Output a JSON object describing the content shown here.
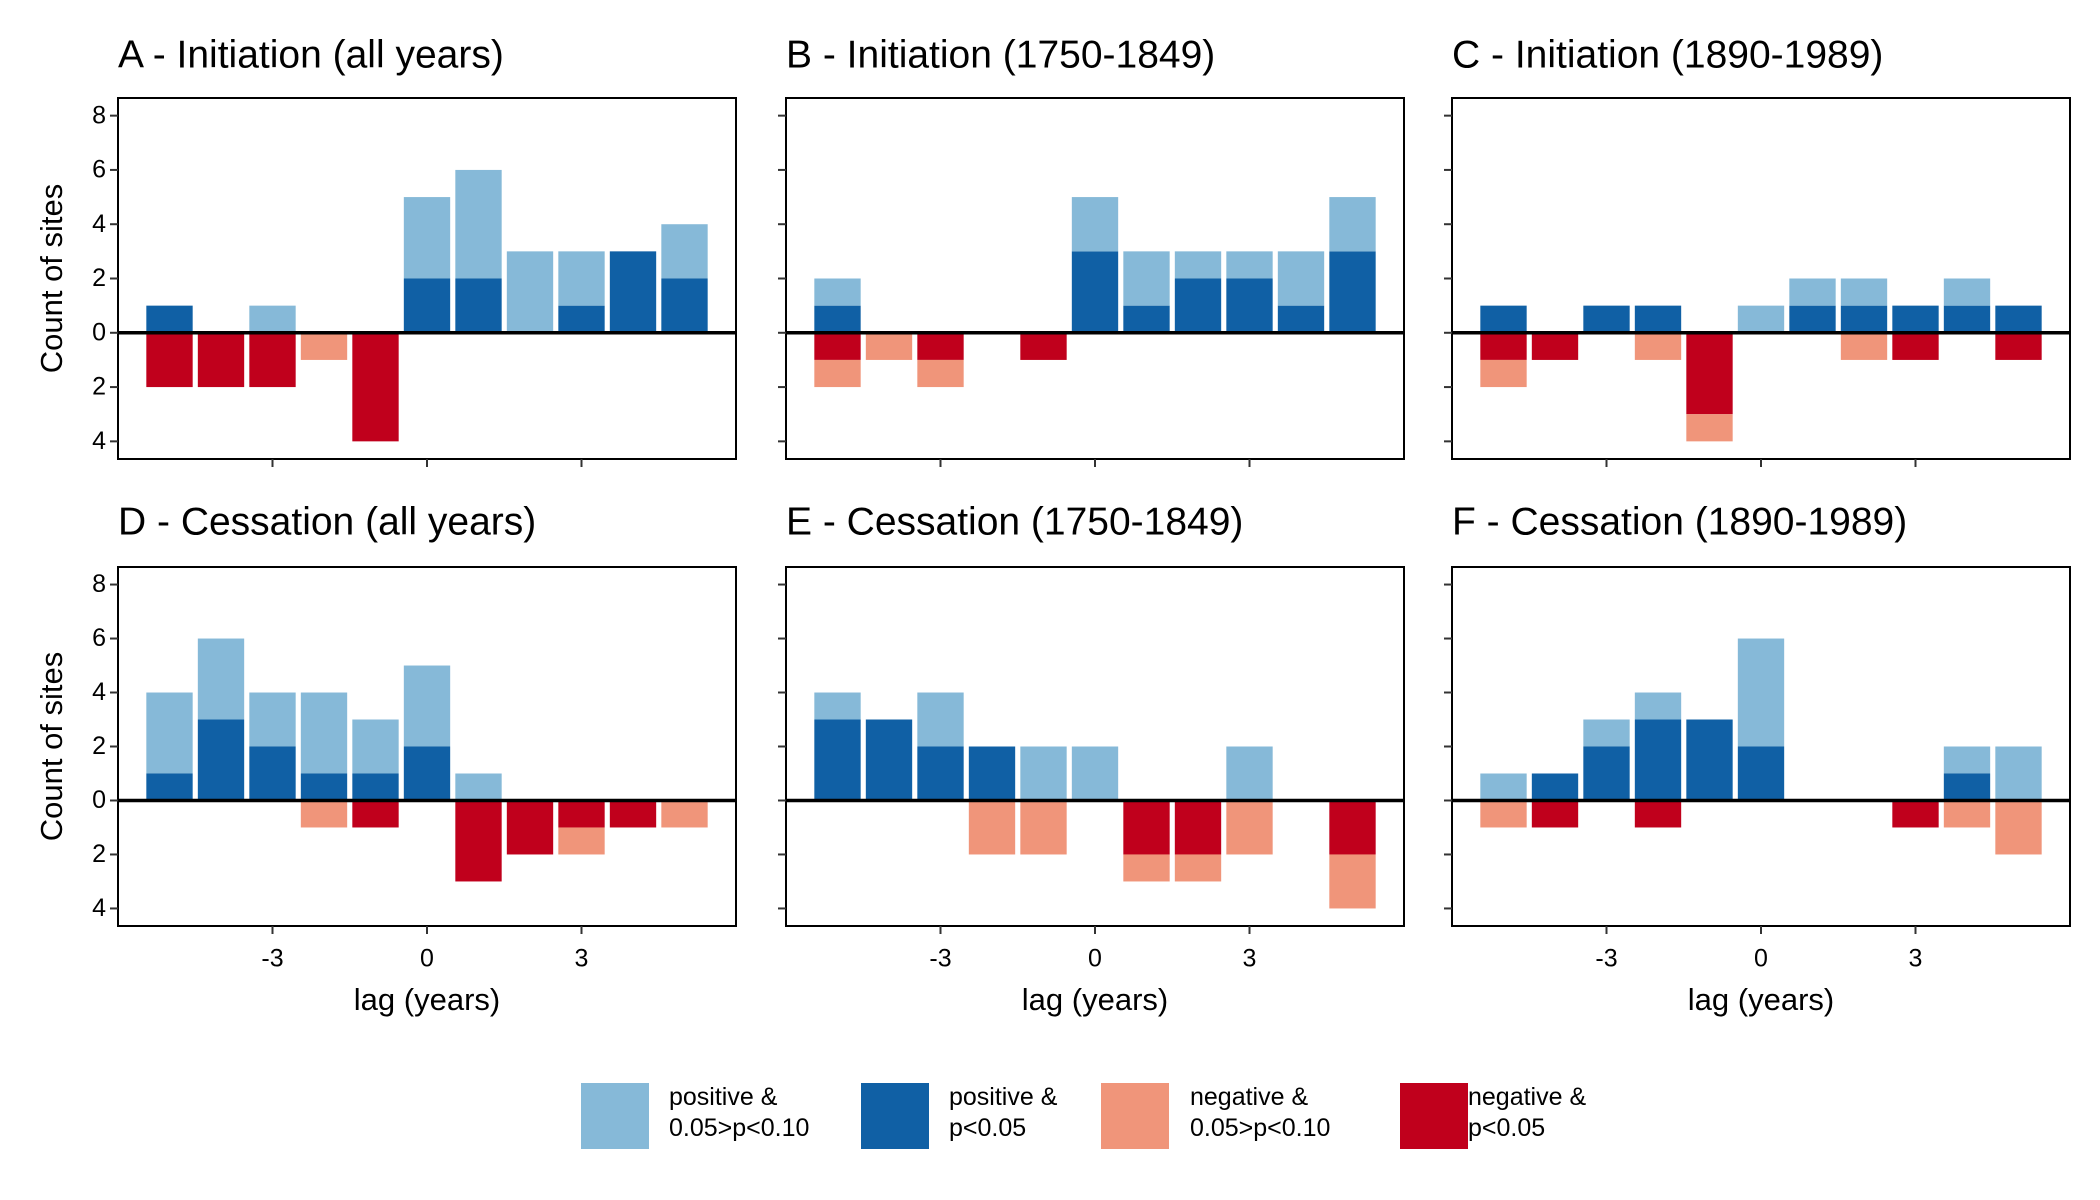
{
  "chart_data": [
    {
      "type": "bar",
      "title": "A - Initiation (all years)",
      "x": [
        -5,
        -4,
        -3,
        -2,
        -1,
        0,
        1,
        2,
        3,
        4,
        5
      ],
      "series": [
        {
          "name": "positive &\n0.05>p<0.10",
          "color": "#86b9d8",
          "values": [
            0,
            0,
            1,
            0,
            0,
            3,
            4,
            3,
            2,
            0,
            2
          ]
        },
        {
          "name": "positive &\np<0.05",
          "color": "#1060a5",
          "values": [
            1,
            0,
            0,
            0,
            0,
            2,
            2,
            0,
            1,
            3,
            2
          ]
        },
        {
          "name": "negative &\n0.05>p<0.10",
          "color": "#f0957a",
          "values": [
            0,
            0,
            0,
            -1,
            0,
            0,
            0,
            0,
            0,
            0,
            0
          ]
        },
        {
          "name": "negative &\np<0.05",
          "color": "#c0001c",
          "values": [
            -2,
            -2,
            -2,
            0,
            -4,
            0,
            0,
            0,
            0,
            0,
            0
          ]
        }
      ],
      "xlim": [
        -6,
        6
      ],
      "ylim": [
        -4.65,
        8.65
      ],
      "xticks": [
        -3,
        0,
        3
      ],
      "yticks": [
        {
          "value": -4,
          "label": "4"
        },
        {
          "value": -2,
          "label": "2"
        },
        0,
        2,
        4,
        6,
        8
      ],
      "ylabel": "Count of sites"
    },
    {
      "type": "bar",
      "title": "B - Initiation (1750-1849)",
      "x": [
        -5,
        -4,
        -3,
        -2,
        -1,
        0,
        1,
        2,
        3,
        4,
        5
      ],
      "series": [
        {
          "name": "positive &\n0.05>p<0.10",
          "color": "#86b9d8",
          "values": [
            1,
            0,
            0,
            0,
            0,
            2,
            2,
            1,
            1,
            2,
            2
          ]
        },
        {
          "name": "positive &\np<0.05",
          "color": "#1060a5",
          "values": [
            1,
            0,
            0,
            0,
            0,
            3,
            1,
            2,
            2,
            1,
            3
          ]
        },
        {
          "name": "negative &\n0.05>p<0.10",
          "color": "#f0957a",
          "values": [
            -1,
            -1,
            -1,
            0,
            0,
            0,
            0,
            0,
            0,
            0,
            0
          ]
        },
        {
          "name": "negative &\np<0.05",
          "color": "#c0001c",
          "values": [
            -1,
            0,
            -1,
            0,
            -1,
            0,
            0,
            0,
            0,
            0,
            0
          ]
        }
      ],
      "xlim": [
        -6,
        6
      ],
      "ylim": [
        -4.65,
        8.65
      ],
      "xticks": [
        -3,
        0,
        3
      ],
      "yticks": [
        -4,
        -2,
        0,
        2,
        4,
        6,
        8
      ]
    },
    {
      "type": "bar",
      "title": "C - Initiation (1890-1989)",
      "x": [
        -5,
        -4,
        -3,
        -2,
        -1,
        0,
        1,
        2,
        3,
        4,
        5
      ],
      "series": [
        {
          "name": "positive &\n0.05>p<0.10",
          "color": "#86b9d8",
          "values": [
            0,
            0,
            0,
            0,
            0,
            1,
            1,
            1,
            0,
            1,
            0
          ]
        },
        {
          "name": "positive &\np<0.05",
          "color": "#1060a5",
          "values": [
            1,
            0,
            1,
            1,
            0,
            0,
            1,
            1,
            1,
            1,
            1
          ]
        },
        {
          "name": "negative &\n0.05>p<0.10",
          "color": "#f0957a",
          "values": [
            -1,
            0,
            0,
            -1,
            -1,
            0,
            0,
            -1,
            0,
            0,
            0
          ]
        },
        {
          "name": "negative &\np<0.05",
          "color": "#c0001c",
          "values": [
            -1,
            -1,
            0,
            0,
            -3,
            0,
            0,
            0,
            -1,
            0,
            -1
          ]
        }
      ],
      "xlim": [
        -6,
        6
      ],
      "ylim": [
        -4.65,
        8.65
      ],
      "xticks": [
        -3,
        0,
        3
      ],
      "yticks": [
        -4,
        -2,
        0,
        2,
        4,
        6,
        8
      ]
    },
    {
      "type": "bar",
      "title": "D - Cessation (all years)",
      "x": [
        -5,
        -4,
        -3,
        -2,
        -1,
        0,
        1,
        2,
        3,
        4,
        5
      ],
      "series": [
        {
          "name": "positive &\n0.05>p<0.10",
          "color": "#86b9d8",
          "values": [
            3,
            3,
            2,
            3,
            2,
            3,
            1,
            0,
            0,
            0,
            0
          ]
        },
        {
          "name": "positive &\np<0.05",
          "color": "#1060a5",
          "values": [
            1,
            3,
            2,
            1,
            1,
            2,
            0,
            0,
            0,
            0,
            0
          ]
        },
        {
          "name": "negative &\n0.05>p<0.10",
          "color": "#f0957a",
          "values": [
            0,
            0,
            0,
            -1,
            0,
            0,
            0,
            0,
            -1,
            0,
            -1
          ]
        },
        {
          "name": "negative &\np<0.05",
          "color": "#c0001c",
          "values": [
            0,
            0,
            0,
            0,
            -1,
            0,
            -3,
            -2,
            -1,
            -1,
            0
          ]
        }
      ],
      "xlim": [
        -6,
        6
      ],
      "ylim": [
        -4.65,
        8.65
      ],
      "xticks": [
        -3,
        0,
        3
      ],
      "yticks": [
        {
          "value": -4,
          "label": "4"
        },
        {
          "value": -2,
          "label": "2"
        },
        0,
        2,
        4,
        6,
        8
      ],
      "xlabel": "lag (years)",
      "ylabel": "Count of sites"
    },
    {
      "type": "bar",
      "title": "E - Cessation (1750-1849)",
      "x": [
        -5,
        -4,
        -3,
        -2,
        -1,
        0,
        1,
        2,
        3,
        4,
        5
      ],
      "series": [
        {
          "name": "positive &\n0.05>p<0.10",
          "color": "#86b9d8",
          "values": [
            1,
            0,
            2,
            0,
            2,
            2,
            0,
            0,
            2,
            0,
            0
          ]
        },
        {
          "name": "positive &\np<0.05",
          "color": "#1060a5",
          "values": [
            3,
            3,
            2,
            2,
            0,
            0,
            0,
            0,
            0,
            0,
            0
          ]
        },
        {
          "name": "negative &\n0.05>p<0.10",
          "color": "#f0957a",
          "values": [
            0,
            0,
            0,
            -2,
            -2,
            0,
            -1,
            -1,
            -2,
            0,
            -2
          ]
        },
        {
          "name": "negative &\np<0.05",
          "color": "#c0001c",
          "values": [
            0,
            0,
            0,
            0,
            0,
            0,
            -2,
            -2,
            0,
            0,
            -2
          ]
        }
      ],
      "xlim": [
        -6,
        6
      ],
      "ylim": [
        -4.65,
        8.65
      ],
      "xticks": [
        -3,
        0,
        3
      ],
      "yticks": [
        -4,
        -2,
        0,
        2,
        4,
        6,
        8
      ],
      "xlabel": "lag (years)"
    },
    {
      "type": "bar",
      "title": "F - Cessation (1890-1989)",
      "x": [
        -5,
        -4,
        -3,
        -2,
        -1,
        0,
        1,
        2,
        3,
        4,
        5
      ],
      "series": [
        {
          "name": "positive &\n0.05>p<0.10",
          "color": "#86b9d8",
          "values": [
            1,
            0,
            1,
            1,
            0,
            4,
            0,
            0,
            0,
            1,
            2
          ]
        },
        {
          "name": "positive &\np<0.05",
          "color": "#1060a5",
          "values": [
            0,
            1,
            2,
            3,
            3,
            2,
            0,
            0,
            0,
            1,
            0
          ]
        },
        {
          "name": "negative &\n0.05>p<0.10",
          "color": "#f0957a",
          "values": [
            -1,
            0,
            0,
            0,
            0,
            0,
            0,
            0,
            0,
            -1,
            -2
          ]
        },
        {
          "name": "negative &\np<0.05",
          "color": "#c0001c",
          "values": [
            0,
            -1,
            0,
            -1,
            0,
            0,
            0,
            0,
            -1,
            0,
            0
          ]
        }
      ],
      "xlim": [
        -6,
        6
      ],
      "ylim": [
        -4.65,
        8.65
      ],
      "xticks": [
        -3,
        0,
        3
      ],
      "yticks": [
        -4,
        -2,
        0,
        2,
        4,
        6,
        8
      ],
      "xlabel": "lag (years)"
    }
  ]
}
